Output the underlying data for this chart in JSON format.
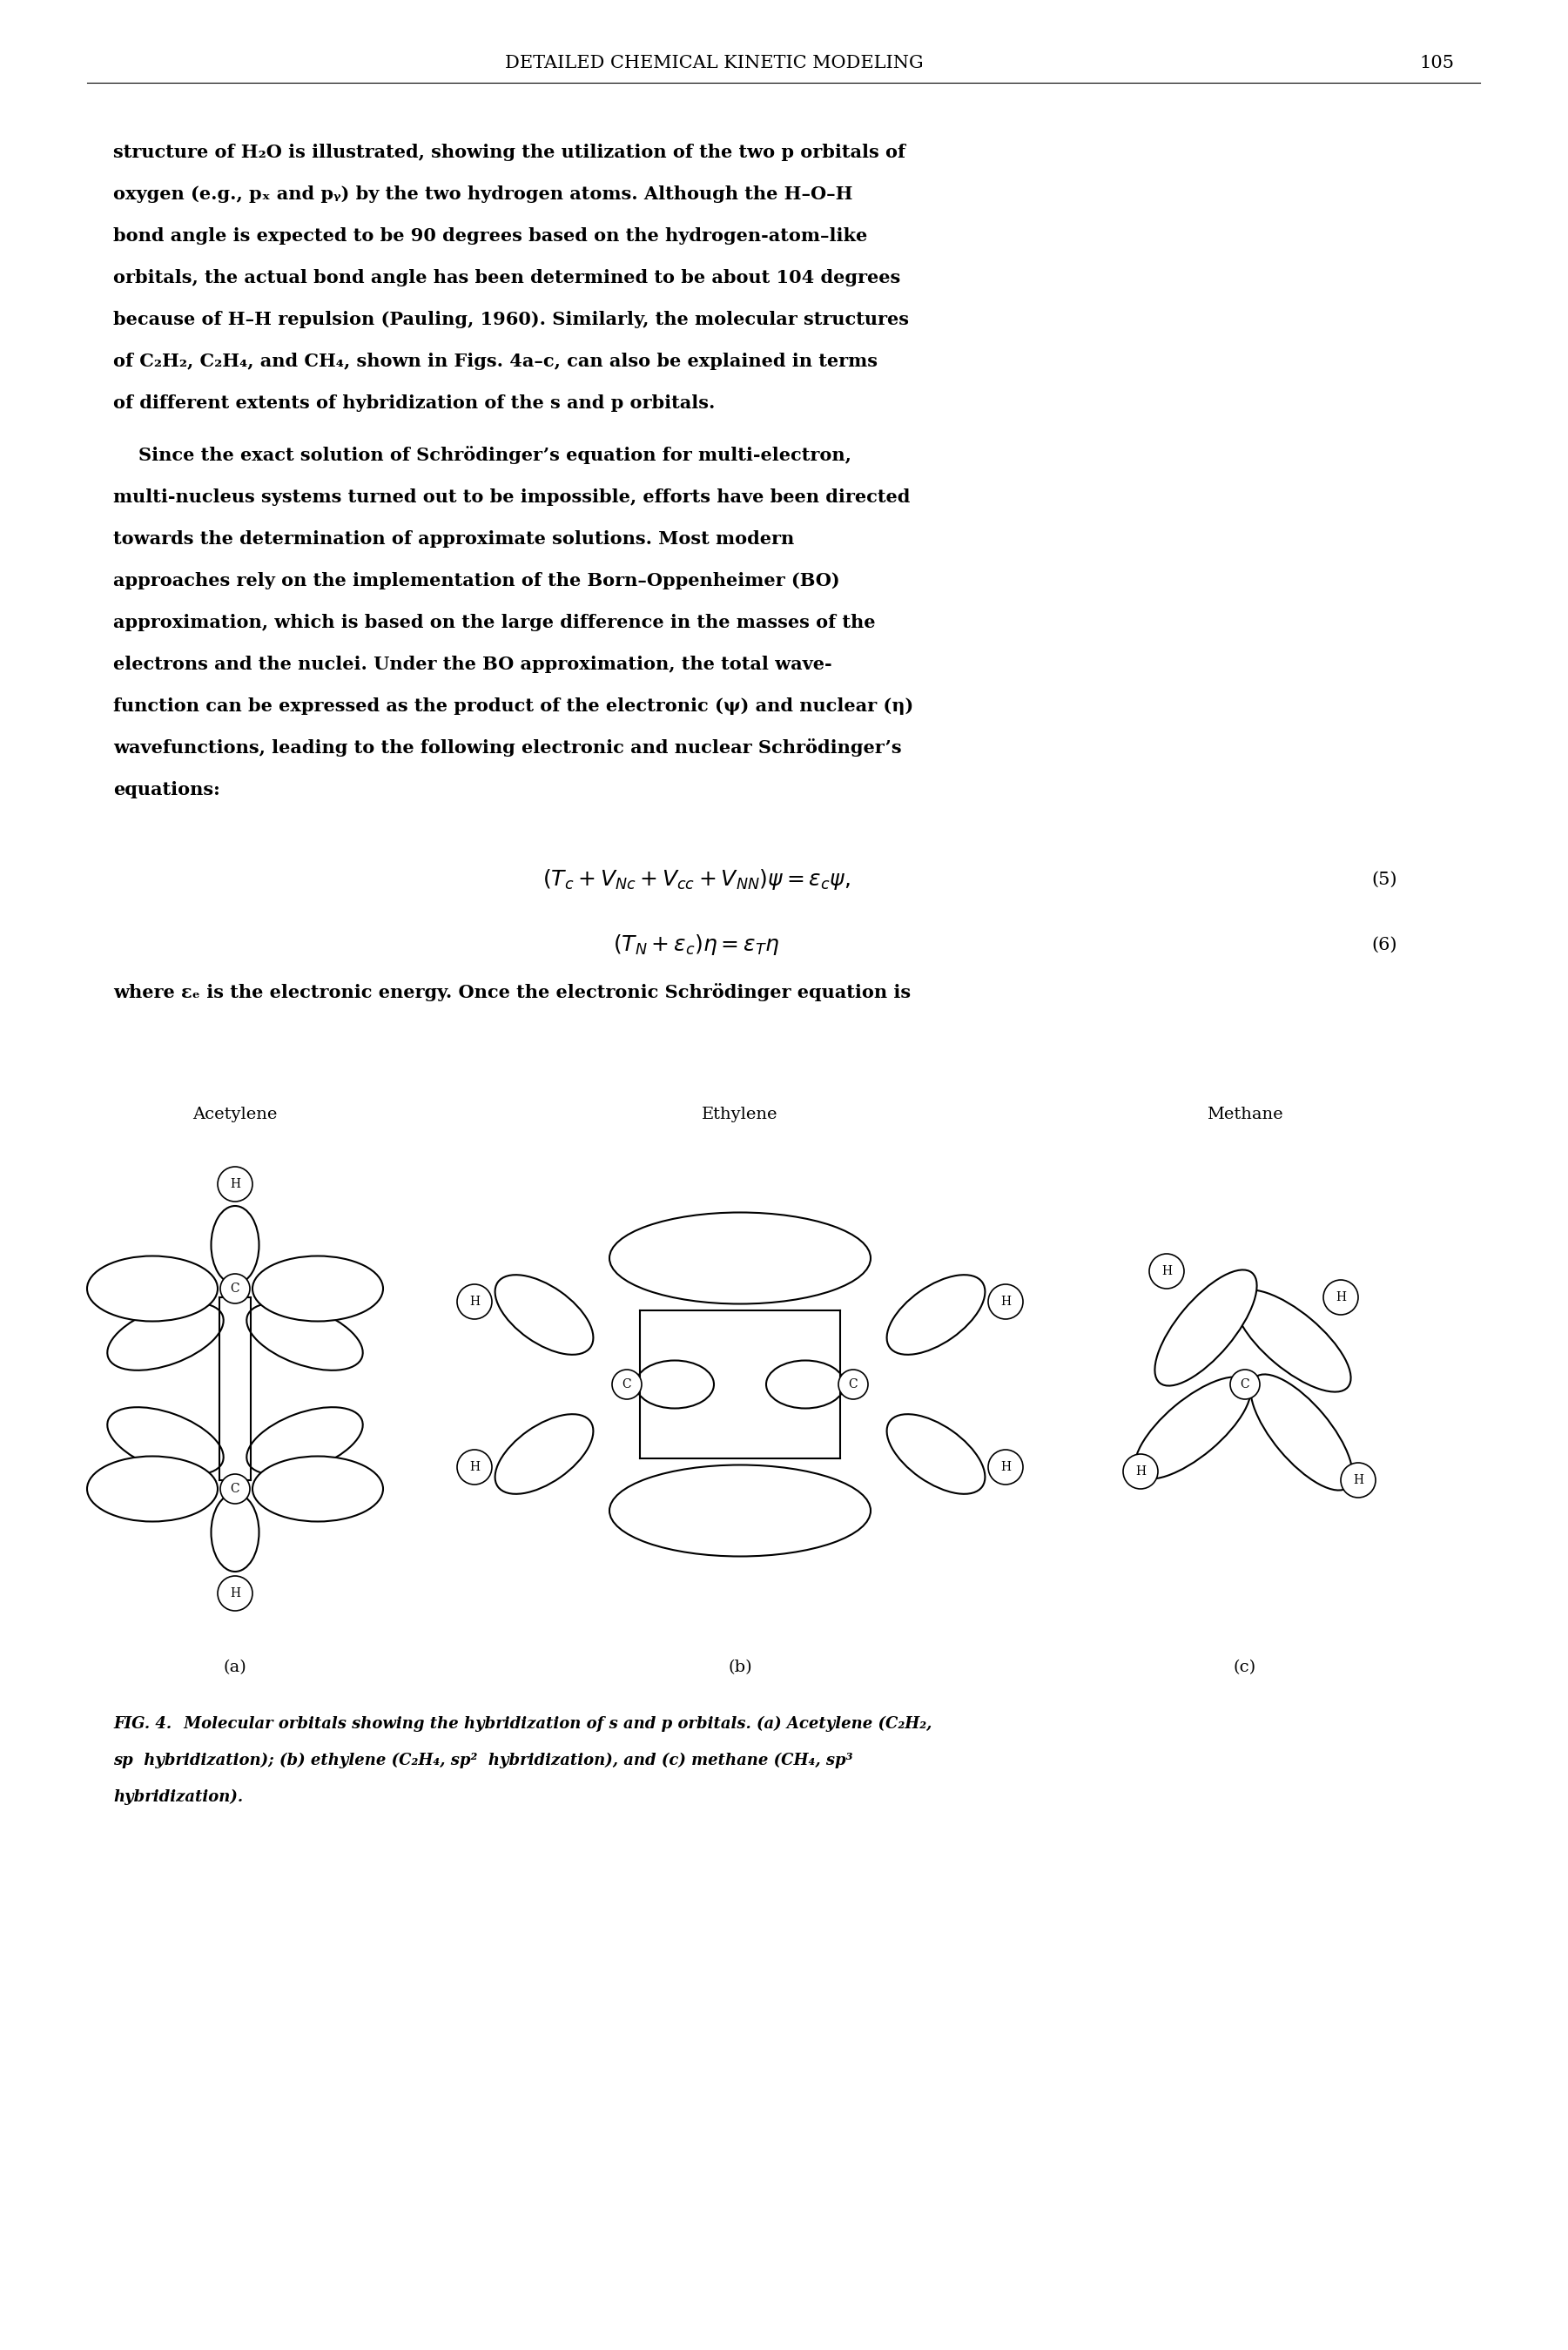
{
  "header": "DETAILED CHEMICAL KINETIC MODELING",
  "page_number": "105",
  "body_text1": [
    "structure of H₂O is illustrated, showing the utilization of the two p orbitals of",
    "oxygen (e.g., pₓ and pᵧ) by the two hydrogen atoms. Although the H–O–H",
    "bond angle is expected to be 90 degrees based on the hydrogen-atom–like",
    "orbitals, the actual bond angle has been determined to be about 104 degrees",
    "because of H–H repulsion (Pauling, 1960). Similarly, the molecular structures",
    "of C₂H₂, C₂H₄, and CH₄, shown in Figs. 4a–c, can also be explained in terms",
    "of different extents of hybridization of the s and p orbitals."
  ],
  "body_text2": [
    "    Since the exact solution of Schrödinger’s equation for multi-electron,",
    "multi-nucleus systems turned out to be impossible, efforts have been directed",
    "towards the determination of approximate solutions. Most modern",
    "approaches rely on the implementation of the Born–Oppenheimer (BO)",
    "approximation, which is based on the large difference in the masses of the",
    "electrons and the nuclei. Under the BO approximation, the total wave-",
    "function can be expressed as the product of the electronic (ψ) and nuclear (η)",
    "wavefunctions, leading to the following electronic and nuclear Schrödinger’s",
    "equations:"
  ],
  "eq1_num": "(5)",
  "eq2_num": "(6)",
  "where_text": "where εₑ is the electronic energy. Once the electronic Schrödinger equation is",
  "label_acetylene": "Acetylene",
  "label_ethylene": "Ethylene",
  "label_methane": "Methane",
  "label_a": "(a)",
  "label_b": "(b)",
  "label_c": "(c)",
  "caption_bold": "FIG. 4.",
  "caption_rest": " Molecular orbitals showing the hybridization of s and p orbitals. (a) Acetylene (C₂H₂,",
  "caption_line2": "sp  hybridization); (b) ethylene (C₂H₄, sp²  hybridization), and (c) methane (CH₄, sp³",
  "caption_line3": "hybridization).",
  "bg_color": "#ffffff",
  "text_color": "#000000"
}
